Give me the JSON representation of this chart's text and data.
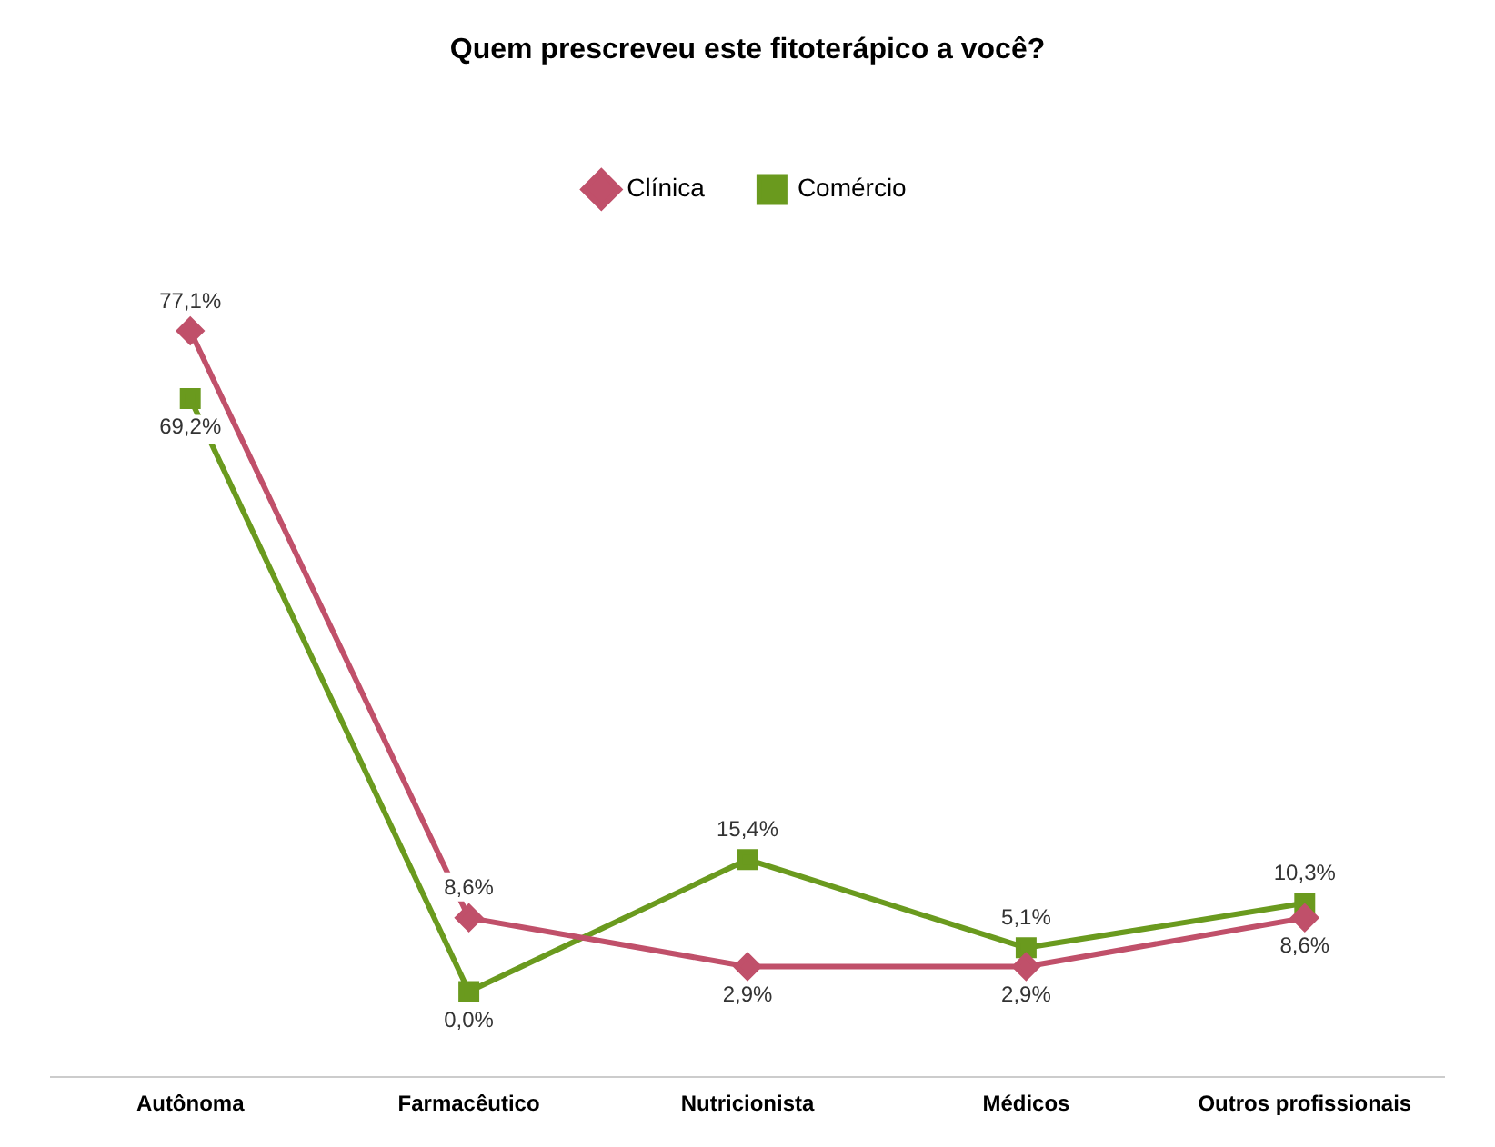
{
  "chart_data": {
    "type": "line",
    "title": "Quem prescreveu este fitoterápico a você?",
    "categories": [
      "Autônoma",
      "Farmacêutico",
      "Nutricionista",
      "Médicos",
      "Outros profissionais"
    ],
    "series": [
      {
        "name": "Clínica",
        "color": "#c0506a",
        "marker": "diamond",
        "values": [
          77.1,
          8.6,
          2.9,
          2.9,
          8.6
        ],
        "value_labels": [
          "77,1%",
          "8,6%",
          "2,9%",
          "2,9%",
          "8,6%"
        ]
      },
      {
        "name": "Comércio",
        "color": "#6a9a1e",
        "marker": "square",
        "values": [
          69.2,
          0.0,
          15.4,
          5.1,
          10.3
        ],
        "value_labels": [
          "69,2%",
          "0,0%",
          "15,4%",
          "5,1%",
          "10,3%"
        ]
      }
    ],
    "legend": "top",
    "grid": false
  }
}
